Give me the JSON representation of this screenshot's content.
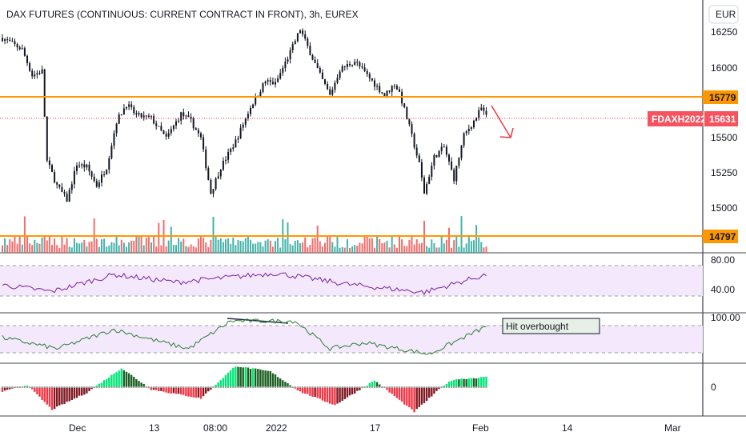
{
  "header": {
    "title": "DAX FUTURES (CONTINUOUS: CURRENT CONTRACT IN FRONT), 3h, EUREX",
    "currency": "EUR"
  },
  "price_axis_labels": [
    "16250",
    "16000",
    "15750",
    "15500",
    "15250",
    "15000"
  ],
  "x_axis_labels": [
    "Dec",
    "13",
    "08:00",
    "2022",
    "17",
    "Feb",
    "14",
    "Mar"
  ],
  "levels": {
    "resistance": "15779",
    "support": "14797",
    "current_symbol": "FDAXH2022",
    "current_price": "15631"
  },
  "rsi_labels": [
    "80.00",
    "40.00"
  ],
  "stoch_label": "100.00",
  "momentum_label": "0",
  "annotation": "Hit overbought",
  "colors": {
    "up": "#26a69a",
    "down": "#ef5350",
    "candle": "#131722",
    "level": "#ff9800",
    "current_tag": "#f7525f",
    "rsi": "#7b1fa2",
    "band": "#f3e8fc",
    "stoch": "#2e7d32",
    "mom_up_strong": "#00e676",
    "mom_up_weak": "#1b5e20",
    "mom_down_strong": "#f23645",
    "mom_down_weak": "#801922",
    "arrow": "#f23645"
  },
  "chart_data": {
    "type": "candlestick",
    "title": "DAX FUTURES (CONTINUOUS: CURRENT CONTRACT IN FRONT), 3h, EUREX",
    "ylim": [
      14800,
      16350
    ],
    "ylabel": "EUR",
    "x_ticks": [
      "Dec",
      "13",
      "08:00",
      "2022",
      "17",
      "Feb",
      "14",
      "Mar"
    ],
    "horizontal_levels": [
      15779,
      14797
    ],
    "last_price": 15631,
    "price_anchors": [
      [
        0,
        16180
      ],
      [
        8,
        16100
      ],
      [
        12,
        15920
      ],
      [
        16,
        15950
      ],
      [
        18,
        15320
      ],
      [
        22,
        15150
      ],
      [
        26,
        15050
      ],
      [
        30,
        15300
      ],
      [
        34,
        15280
      ],
      [
        38,
        15150
      ],
      [
        42,
        15280
      ],
      [
        46,
        15600
      ],
      [
        50,
        15720
      ],
      [
        54,
        15640
      ],
      [
        60,
        15620
      ],
      [
        66,
        15480
      ],
      [
        72,
        15650
      ],
      [
        76,
        15600
      ],
      [
        80,
        15480
      ],
      [
        84,
        15100
      ],
      [
        88,
        15280
      ],
      [
        94,
        15460
      ],
      [
        100,
        15700
      ],
      [
        106,
        15880
      ],
      [
        110,
        15860
      ],
      [
        116,
        16080
      ],
      [
        120,
        16240
      ],
      [
        124,
        16080
      ],
      [
        128,
        15920
      ],
      [
        132,
        15780
      ],
      [
        136,
        15960
      ],
      [
        142,
        16020
      ],
      [
        148,
        15900
      ],
      [
        154,
        15780
      ],
      [
        158,
        15860
      ],
      [
        160,
        15800
      ],
      [
        164,
        15560
      ],
      [
        168,
        15300
      ],
      [
        170,
        15100
      ],
      [
        174,
        15350
      ],
      [
        178,
        15420
      ],
      [
        182,
        15200
      ],
      [
        186,
        15500
      ],
      [
        190,
        15600
      ],
      [
        193,
        15690
      ],
      [
        195,
        15631
      ]
    ],
    "rsi_anchors": [
      [
        0,
        0.35
      ],
      [
        20,
        0.18
      ],
      [
        45,
        0.62
      ],
      [
        70,
        0.42
      ],
      [
        110,
        0.66
      ],
      [
        140,
        0.36
      ],
      [
        170,
        0.16
      ],
      [
        195,
        0.62
      ]
    ],
    "stoch_anchors": [
      [
        0,
        0.5
      ],
      [
        22,
        0.2
      ],
      [
        45,
        0.72
      ],
      [
        60,
        0.45
      ],
      [
        75,
        0.2
      ],
      [
        92,
        0.95
      ],
      [
        118,
        0.95
      ],
      [
        132,
        0.2
      ],
      [
        146,
        0.36
      ],
      [
        172,
        0.05
      ],
      [
        195,
        0.8
      ]
    ],
    "momentum_anchors": [
      [
        0,
        -0.2
      ],
      [
        10,
        0.1
      ],
      [
        20,
        -1.0
      ],
      [
        34,
        -0.25
      ],
      [
        48,
        0.85
      ],
      [
        60,
        -0.1
      ],
      [
        80,
        -0.5
      ],
      [
        94,
        0.95
      ],
      [
        108,
        0.7
      ],
      [
        120,
        -0.2
      ],
      [
        134,
        -0.8
      ],
      [
        150,
        0.3
      ],
      [
        166,
        -1.1
      ],
      [
        178,
        0.1
      ],
      [
        182,
        0.35
      ],
      [
        195,
        0.45
      ]
    ],
    "indicators": {
      "rsi_levels": [
        80,
        40
      ],
      "stoch_top": 100,
      "momentum_zero": 0,
      "annotation": "Hit overbought"
    }
  }
}
